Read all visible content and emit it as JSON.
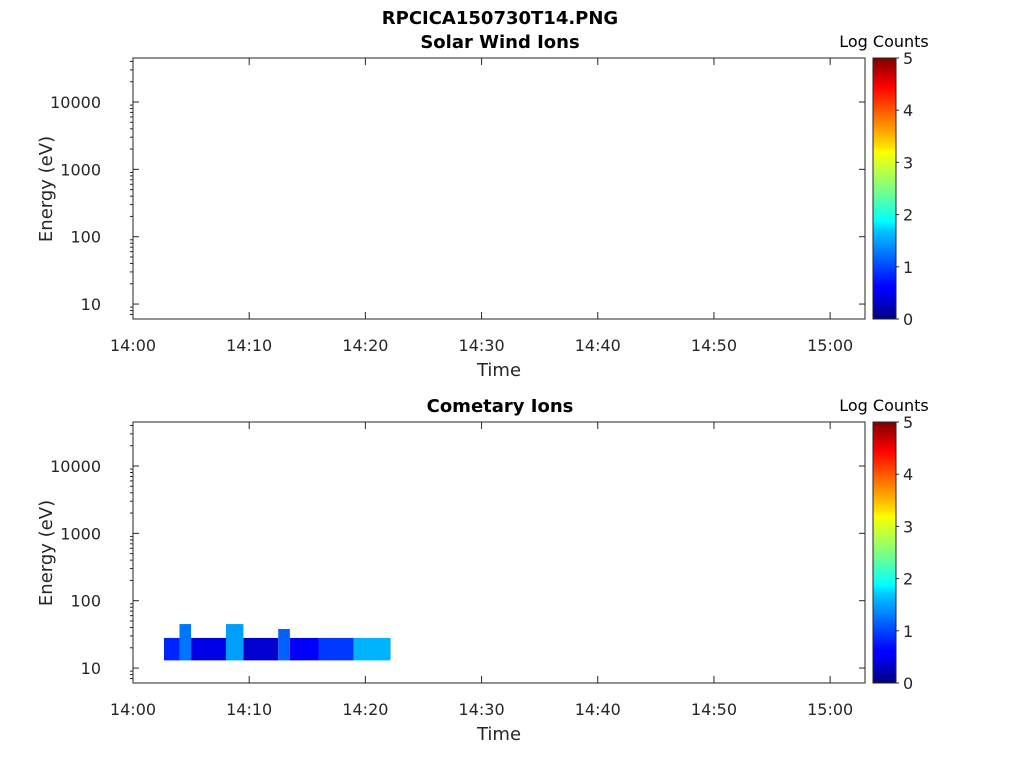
{
  "figure_title": "RPCICA150730T14.PNG",
  "chart_data": [
    {
      "type": "heatmap",
      "title": "Solar Wind Ions",
      "xlabel": "Time",
      "ylabel": "Energy (eV)",
      "x_ticks": [
        "14:00",
        "14:10",
        "14:20",
        "14:30",
        "14:40",
        "14:50",
        "15:00"
      ],
      "xlim": [
        "14:00",
        "15:03"
      ],
      "y_scale": "log",
      "y_ticks": [
        "10",
        "100",
        "1000",
        "10000"
      ],
      "ylim": [
        6,
        45000
      ],
      "colorbar": {
        "label": "Log Counts",
        "range": [
          0,
          5
        ],
        "ticks": [
          "0",
          "1",
          "2",
          "3",
          "4",
          "5"
        ],
        "colormap": "jet"
      },
      "cells": []
    },
    {
      "type": "heatmap",
      "title": "Cometary Ions",
      "xlabel": "Time",
      "ylabel": "Energy (eV)",
      "x_ticks": [
        "14:00",
        "14:10",
        "14:20",
        "14:30",
        "14:40",
        "14:50",
        "15:00"
      ],
      "xlim": [
        "14:00",
        "15:03"
      ],
      "y_scale": "log",
      "y_ticks": [
        "10",
        "100",
        "1000",
        "10000"
      ],
      "ylim": [
        6,
        45000
      ],
      "colorbar": {
        "label": "Log Counts",
        "range": [
          0,
          5
        ],
        "ticks": [
          "0",
          "1",
          "2",
          "3",
          "4",
          "5"
        ],
        "colormap": "jet"
      },
      "data_time_range": [
        "14:02:40",
        "14:22:10"
      ],
      "energy_band_eV": [
        13,
        28
      ],
      "cells": [
        {
          "t_start": "14:02:40",
          "t_end": "14:04:00",
          "e_low": 13,
          "e_high": 28,
          "log_counts": 0.8
        },
        {
          "t_start": "14:04:00",
          "t_end": "14:05:00",
          "e_low": 13,
          "e_high": 45,
          "log_counts": 1.2
        },
        {
          "t_start": "14:05:00",
          "t_end": "14:08:00",
          "e_low": 13,
          "e_high": 28,
          "log_counts": 0.5
        },
        {
          "t_start": "14:08:00",
          "t_end": "14:09:30",
          "e_low": 13,
          "e_high": 45,
          "log_counts": 1.4
        },
        {
          "t_start": "14:09:30",
          "t_end": "14:12:30",
          "e_low": 13,
          "e_high": 28,
          "log_counts": 0.4
        },
        {
          "t_start": "14:12:30",
          "t_end": "14:13:30",
          "e_low": 13,
          "e_high": 38,
          "log_counts": 1.1
        },
        {
          "t_start": "14:13:30",
          "t_end": "14:16:00",
          "e_low": 13,
          "e_high": 28,
          "log_counts": 0.6
        },
        {
          "t_start": "14:16:00",
          "t_end": "14:19:00",
          "e_low": 13,
          "e_high": 28,
          "log_counts": 0.9
        },
        {
          "t_start": "14:19:00",
          "t_end": "14:22:10",
          "e_low": 13,
          "e_high": 28,
          "log_counts": 1.5
        }
      ]
    }
  ]
}
